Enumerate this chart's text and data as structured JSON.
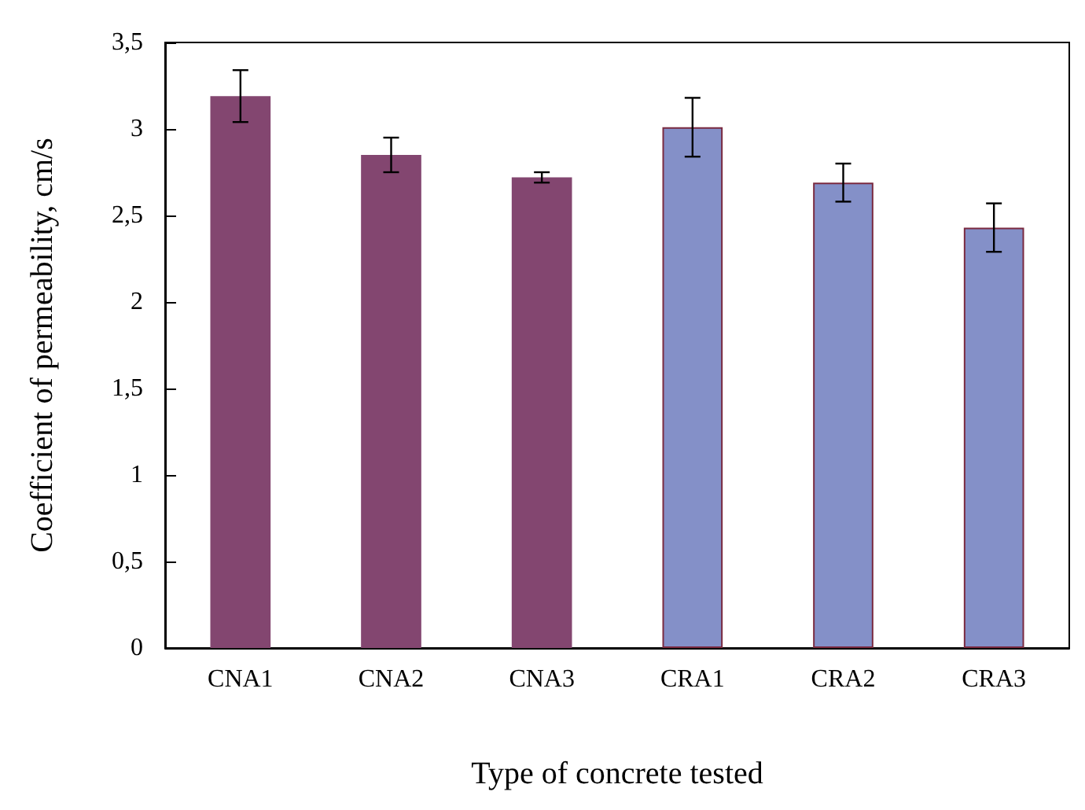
{
  "chart_data": {
    "type": "bar",
    "xlabel": "Type of concrete tested",
    "ylabel": "Coefficient of permeability, cm/s",
    "categories": [
      "CNA1",
      "CNA2",
      "CNA3",
      "CRA1",
      "CRA2",
      "CRA3"
    ],
    "values": [
      3.19,
      2.85,
      2.72,
      3.01,
      2.69,
      2.43
    ],
    "errors": [
      0.15,
      0.1,
      0.03,
      0.17,
      0.11,
      0.14
    ],
    "colors": [
      "#834670",
      "#834670",
      "#834670",
      "#8490c8",
      "#8490c8",
      "#8490c8"
    ],
    "ylim": [
      0,
      3.5
    ],
    "yticks": [
      0,
      {
        "value": 0.5,
        "label": "0,5"
      },
      1,
      {
        "value": 1.5,
        "label": "1,5"
      },
      2,
      {
        "value": 2.5,
        "label": "2,5"
      },
      3,
      {
        "value": 3.5,
        "label": "3,5"
      }
    ],
    "grid": false
  }
}
